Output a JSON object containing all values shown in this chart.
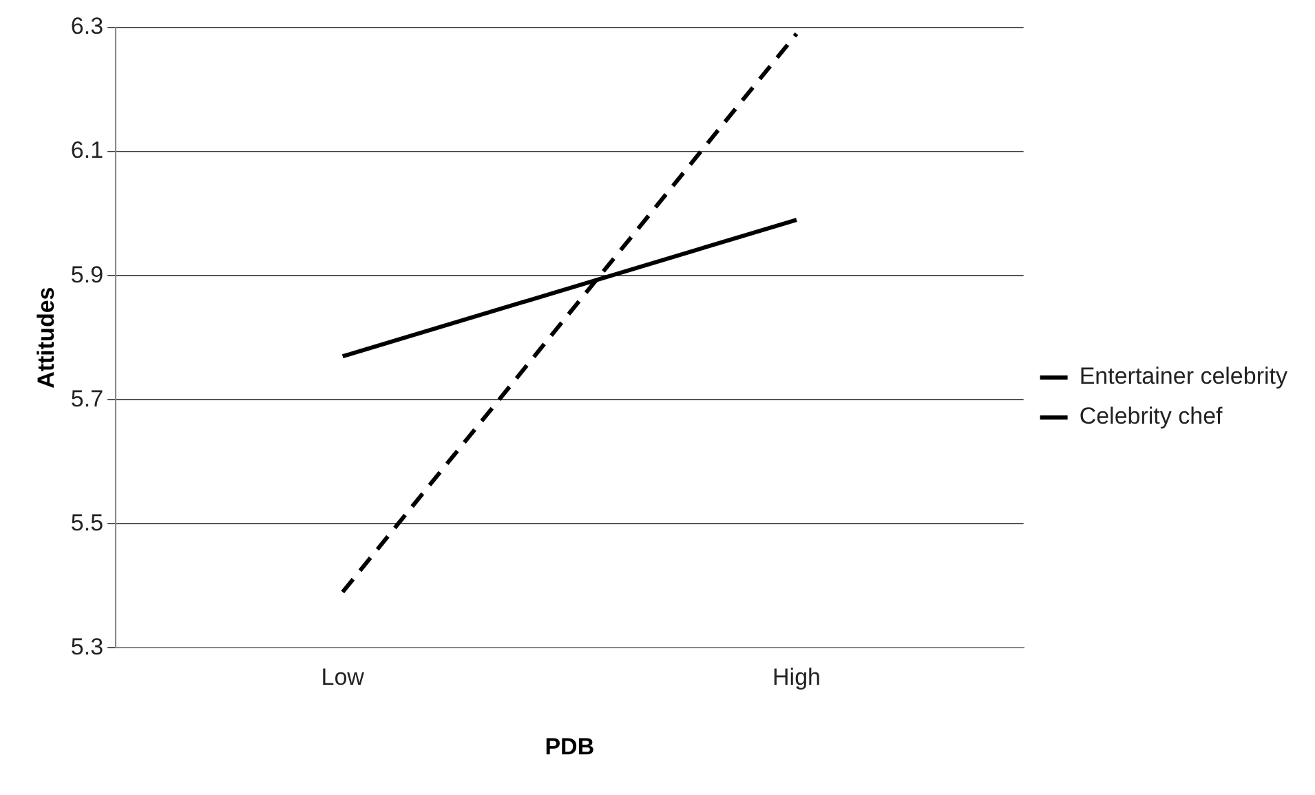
{
  "chart_data": {
    "type": "line",
    "xlabel": "PDB",
    "ylabel": "Attitudes",
    "categories": [
      "Low",
      "High"
    ],
    "series": [
      {
        "name": "Entertainer celebrity",
        "color": "#000000",
        "values": [
          5.39,
          6.29
        ],
        "line_style": "dashed"
      },
      {
        "name": "Celebrity chef",
        "color": "#000000",
        "values": [
          5.77,
          5.99
        ],
        "line_style": "solid"
      }
    ],
    "ylim": [
      5.3,
      6.3
    ],
    "yticks": [
      5.3,
      5.5,
      5.7,
      5.9,
      6.1,
      6.3
    ],
    "grid": "y",
    "legend": "right",
    "marker": "none"
  }
}
